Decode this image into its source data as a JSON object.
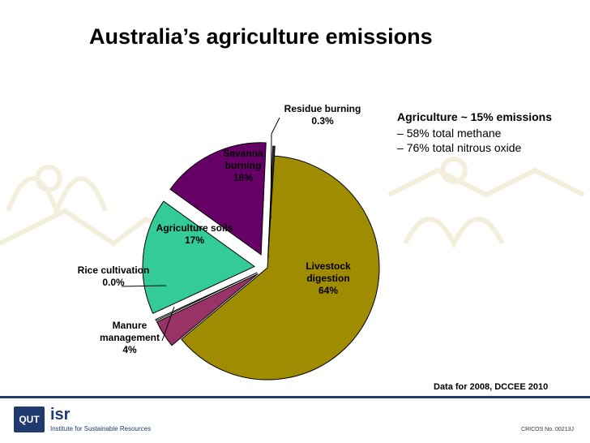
{
  "slide": {
    "title": "Australia’s agriculture emissions",
    "bullets": {
      "heading": "Agriculture ~ 15% emissions",
      "items": [
        "58% total methane",
        "76% total nitrous oxide"
      ]
    },
    "source_note": "Data for 2008, DCCEE 2010"
  },
  "footer": {
    "logo_text": "QUT",
    "org_short": "isr",
    "org_full": "Institute for Sustainable Resources",
    "cricos": "CRICOS No. 00213J"
  },
  "colors": {
    "livestock": "#a08c00",
    "manure": "#993366",
    "rice": "#ccffcc",
    "soils": "#33cc99",
    "savanna": "#660066",
    "residue": "#333333"
  },
  "chart_data": {
    "type": "pie",
    "title": "",
    "slices": [
      {
        "name": "Livestock digestion",
        "value": 64,
        "label_lines": [
          "Livestock",
          "digestion",
          "64%"
        ],
        "color": "#a08c00"
      },
      {
        "name": "Manure management",
        "value": 4,
        "label_lines": [
          "Manure",
          "management",
          "4%"
        ],
        "color": "#993366"
      },
      {
        "name": "Rice cultivation",
        "value": 0.0,
        "label_lines": [
          "Rice cultivation",
          "0.0%"
        ],
        "color": "#ccffcc"
      },
      {
        "name": "Agriculture soils",
        "value": 17,
        "label_lines": [
          "Agriculture soils",
          "17%"
        ],
        "color": "#33cc99"
      },
      {
        "name": "Savanna burning",
        "value": 16,
        "label_lines": [
          "Savanna",
          "burning",
          "16%"
        ],
        "color": "#660066"
      },
      {
        "name": "Residue burning",
        "value": 0.3,
        "label_lines": [
          "Residue burning",
          "0.3%"
        ],
        "color": "#333333"
      }
    ]
  }
}
